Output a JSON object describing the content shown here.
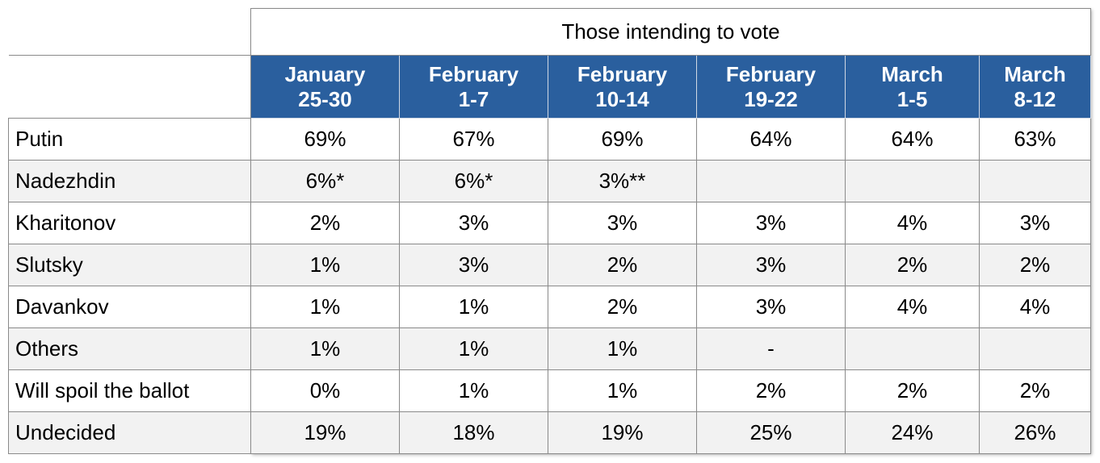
{
  "table": {
    "group_header": "Those intending to vote",
    "columns": [
      [
        "January",
        "25-30"
      ],
      [
        "February",
        "1-7"
      ],
      [
        "February",
        "10-14"
      ],
      [
        "February",
        "19-22"
      ],
      [
        "March",
        "1-5"
      ],
      [
        "March",
        "8-12"
      ]
    ],
    "rows": [
      [
        "Putin",
        "69%",
        "67%",
        "69%",
        "64%",
        "64%",
        "63%"
      ],
      [
        "Nadezhdin",
        "6%*",
        "6%*",
        "3%**",
        null,
        null,
        null
      ],
      [
        "Kharitonov",
        "2%",
        "3%",
        "3%",
        "3%",
        "4%",
        "3%"
      ],
      [
        "Slutsky",
        "1%",
        "3%",
        "2%",
        "3%",
        "2%",
        "2%"
      ],
      [
        "Davankov",
        "1%",
        "1%",
        "2%",
        "3%",
        "4%",
        "4%"
      ],
      [
        "Others",
        "1%",
        "1%",
        "1%",
        "-",
        null,
        null
      ],
      [
        "Will spoil the ballot",
        "0%",
        "1%",
        "1%",
        "2%",
        "2%",
        "2%"
      ],
      [
        "Undecided",
        "19%",
        "18%",
        "19%",
        "25%",
        "24%",
        "26%"
      ]
    ]
  }
}
